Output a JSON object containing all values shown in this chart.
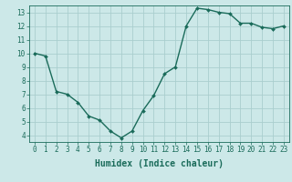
{
  "x": [
    0,
    1,
    2,
    3,
    4,
    5,
    6,
    7,
    8,
    9,
    10,
    11,
    12,
    13,
    14,
    15,
    16,
    17,
    18,
    19,
    20,
    21,
    22,
    23
  ],
  "y": [
    10.0,
    9.8,
    7.2,
    7.0,
    6.4,
    5.4,
    5.1,
    4.3,
    3.8,
    4.3,
    5.8,
    6.9,
    8.5,
    9.0,
    12.0,
    13.3,
    13.2,
    13.0,
    12.9,
    12.2,
    12.2,
    11.9,
    11.8,
    12.0
  ],
  "xlabel": "Humidex (Indice chaleur)",
  "ylim": [
    3.5,
    13.5
  ],
  "xlim": [
    -0.5,
    23.5
  ],
  "yticks": [
    4,
    5,
    6,
    7,
    8,
    9,
    10,
    11,
    12,
    13
  ],
  "xticks": [
    0,
    1,
    2,
    3,
    4,
    5,
    6,
    7,
    8,
    9,
    10,
    11,
    12,
    13,
    14,
    15,
    16,
    17,
    18,
    19,
    20,
    21,
    22,
    23
  ],
  "line_color": "#1a6b5a",
  "marker": "D",
  "marker_size": 2.0,
  "bg_color": "#cce8e8",
  "grid_color": "#aacece",
  "tick_label_fontsize": 5.5,
  "xlabel_fontsize": 7.0,
  "linewidth": 1.0
}
